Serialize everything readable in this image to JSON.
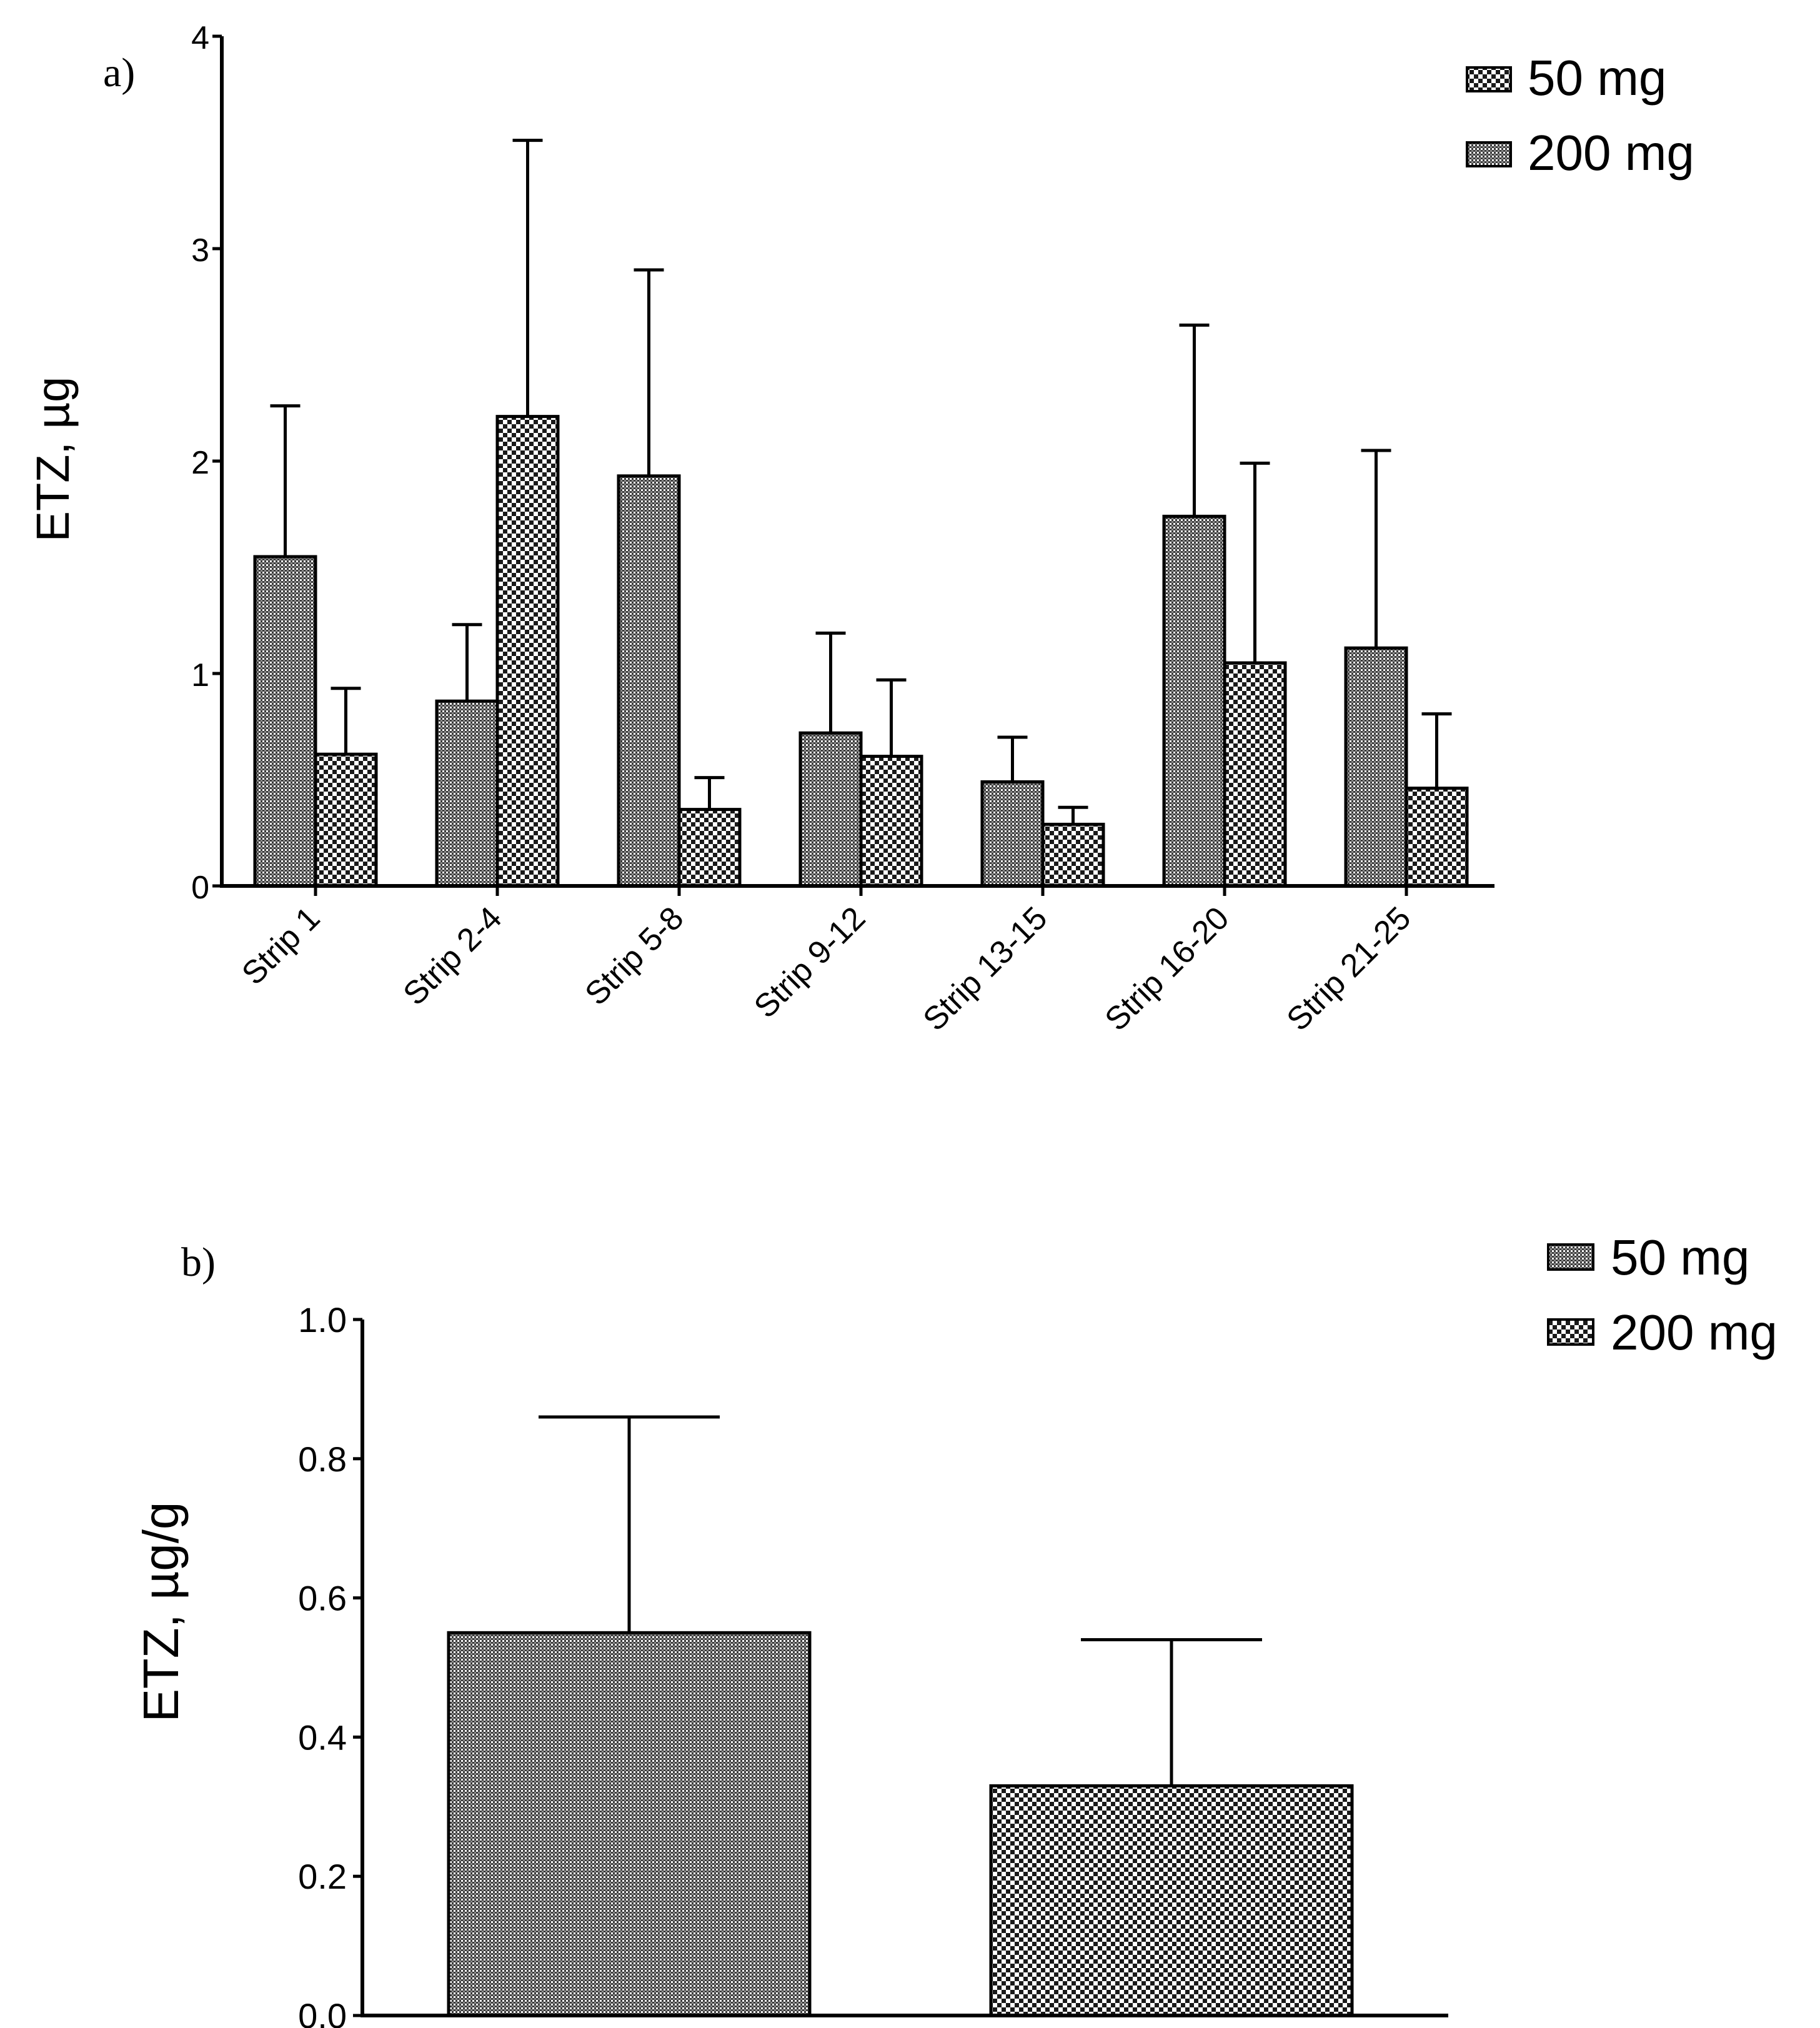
{
  "chart_data": [
    {
      "type": "bar",
      "panel_label": "a)",
      "ylabel": "ETZ, µg",
      "xlabel": "",
      "ylim": [
        0,
        4
      ],
      "yticks": [
        0,
        1,
        2,
        3,
        4
      ],
      "categories": [
        "Strip 1",
        "Strip 2-4",
        "Strip 5-8",
        "Strip 9-12",
        "Strip 13-15",
        "Strip 16-20",
        "Strip 21-25"
      ],
      "series": [
        {
          "name": "50 mg",
          "pattern": "fine",
          "values": [
            1.55,
            0.87,
            1.93,
            0.72,
            0.49,
            1.74,
            1.12
          ],
          "error": [
            0.71,
            0.36,
            0.97,
            0.47,
            0.21,
            0.9,
            0.93
          ]
        },
        {
          "name": "200 mg",
          "pattern": "checker",
          "values": [
            0.62,
            2.21,
            0.36,
            0.61,
            0.29,
            1.05,
            0.46
          ],
          "error": [
            0.31,
            1.3,
            0.15,
            0.36,
            0.08,
            0.94,
            0.35
          ]
        }
      ],
      "legend_placement": "top-right",
      "grid": false
    },
    {
      "type": "bar",
      "panel_label": "b)",
      "ylabel": "ETZ, µg/g",
      "xlabel": "",
      "ylim": [
        0,
        1.0
      ],
      "yticks": [
        "0.0",
        "0.2",
        "0.4",
        "0.6",
        "0.8",
        "1.0"
      ],
      "categories": [
        "50 mg",
        "200 mg"
      ],
      "series": [
        {
          "name": "",
          "values": [
            0.55,
            0.33
          ],
          "error": [
            0.31,
            0.21
          ],
          "patterns": [
            "fine",
            "checker"
          ]
        }
      ],
      "legend": [
        {
          "name": "50 mg",
          "pattern": "fine"
        },
        {
          "name": "200 mg",
          "pattern": "checker"
        }
      ],
      "legend_placement": "top-right",
      "grid": false
    }
  ]
}
